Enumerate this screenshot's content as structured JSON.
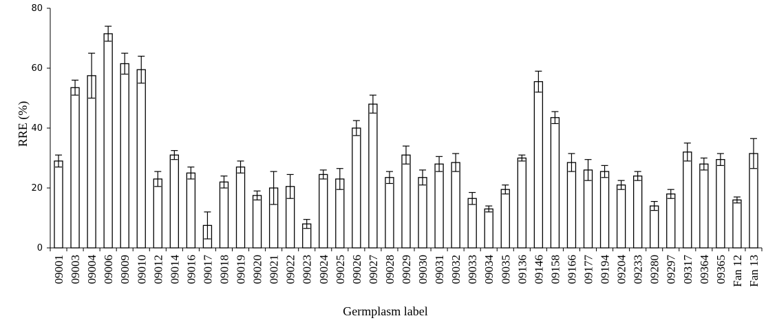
{
  "chart_data": {
    "type": "bar",
    "title": "",
    "xlabel": "Germplasm label",
    "ylabel": "RRE (%)",
    "ylim": [
      0,
      80
    ],
    "yticks": [
      0,
      20,
      40,
      60,
      80
    ],
    "grid": false,
    "error_bars": true,
    "categories": [
      "09001",
      "09003",
      "09004",
      "09006",
      "09009",
      "09010",
      "09012",
      "09014",
      "09016",
      "09017",
      "09018",
      "09019",
      "09020",
      "09021",
      "09022",
      "09023",
      "09024",
      "09025",
      "09026",
      "09027",
      "09028",
      "09029",
      "09030",
      "09031",
      "09032",
      "09033",
      "09034",
      "09035",
      "09136",
      "09146",
      "09158",
      "09166",
      "09177",
      "09194",
      "09204",
      "09233",
      "09280",
      "09297",
      "09317",
      "09364",
      "09365",
      "Fan 12",
      "Fan 13"
    ],
    "values": [
      29,
      53.5,
      57.5,
      71.5,
      61.5,
      59.5,
      23,
      31,
      25,
      7.5,
      22,
      27,
      17.5,
      20,
      20.5,
      8,
      24.5,
      23,
      40,
      48,
      23.5,
      31,
      23.5,
      28,
      28.5,
      16.5,
      13,
      19.5,
      30,
      55.5,
      43.5,
      28.5,
      26,
      25.5,
      21,
      24,
      14,
      18,
      32,
      28,
      29.5,
      16,
      31.5
    ],
    "errors": [
      2,
      2.5,
      7.5,
      2.5,
      3.5,
      4.5,
      2.5,
      1.5,
      2,
      4.5,
      2,
      2,
      1.5,
      5.5,
      4,
      1.5,
      1.5,
      3.5,
      2.5,
      3,
      2,
      3,
      2.5,
      2.5,
      3,
      2,
      1,
      1.5,
      1,
      3.5,
      2,
      3,
      3.5,
      2,
      1.5,
      1.5,
      1.5,
      1.5,
      3,
      2,
      2,
      1,
      5
    ]
  }
}
